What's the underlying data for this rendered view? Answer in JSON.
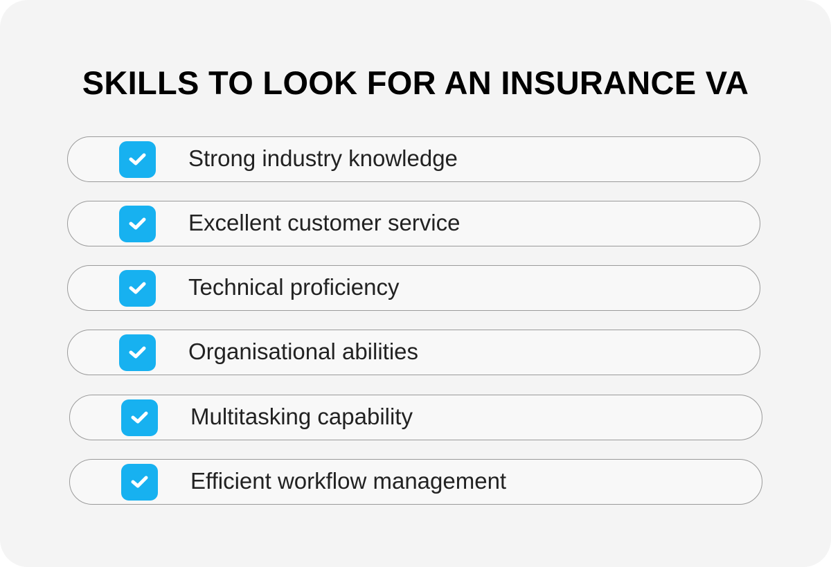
{
  "title": "SKILLS TO LOOK FOR AN INSURANCE VA",
  "accent_color": "#17b1f0",
  "items": [
    {
      "label": "Strong industry knowledge",
      "checked": true,
      "icon": "checkbox-checked-icon"
    },
    {
      "label": "Excellent customer service",
      "checked": true,
      "icon": "checkbox-checked-icon"
    },
    {
      "label": "Technical proficiency",
      "checked": true,
      "icon": "checkbox-checked-icon"
    },
    {
      "label": "Organisational abilities",
      "checked": true,
      "icon": "checkbox-checked-icon"
    },
    {
      "label": "Multitasking capability",
      "checked": true,
      "icon": "checkbox-checked-icon"
    },
    {
      "label": "Efficient workflow management",
      "checked": true,
      "icon": "checkbox-checked-icon"
    }
  ]
}
